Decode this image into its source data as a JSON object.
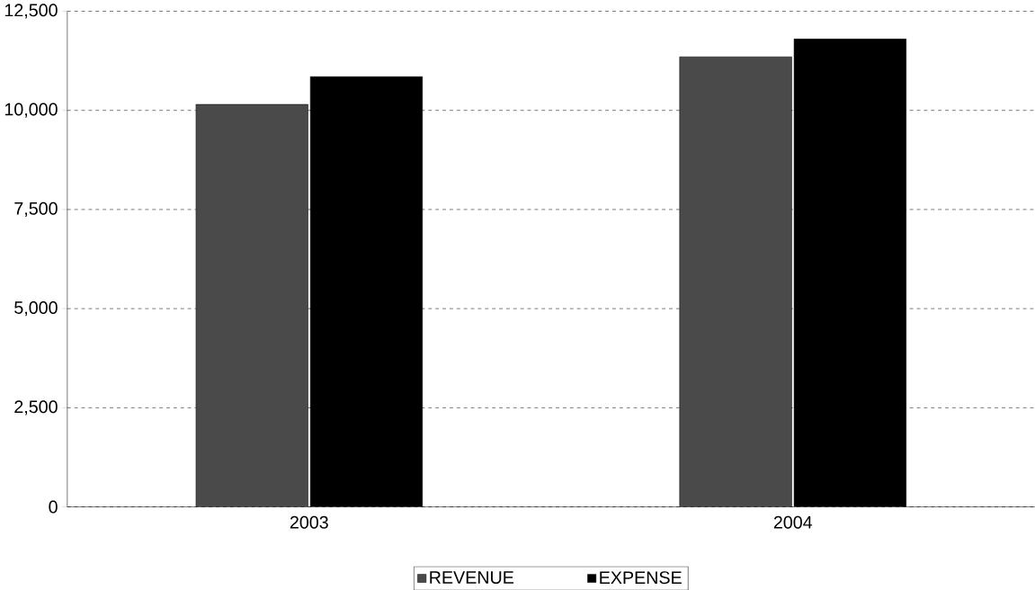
{
  "chart_data": {
    "type": "bar",
    "categories": [
      "2003",
      "2004"
    ],
    "series": [
      {
        "name": "REVENUE",
        "color": "#4a4a4a",
        "values": [
          10150,
          11350
        ]
      },
      {
        "name": "EXPENSE",
        "color": "#000000",
        "values": [
          10850,
          11800
        ]
      }
    ],
    "ylim": [
      0,
      12500
    ],
    "yticks": [
      {
        "value": 0,
        "label": "0"
      },
      {
        "value": 2500,
        "label": "2,500"
      },
      {
        "value": 5000,
        "label": "5,000"
      },
      {
        "value": 7500,
        "label": "7,500"
      },
      {
        "value": 10000,
        "label": "10,000"
      },
      {
        "value": 12500,
        "label": "12,500"
      }
    ],
    "grid": "y",
    "legend": "bottom"
  }
}
